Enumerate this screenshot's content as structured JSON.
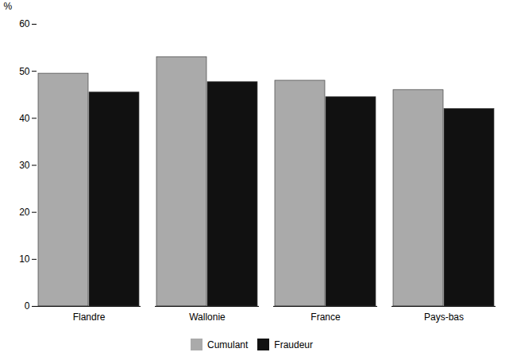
{
  "chart_data": {
    "type": "bar",
    "categories": [
      "Flandre",
      "Wallonie",
      "France",
      "Pays-bas"
    ],
    "series": [
      {
        "name": "Cumulant",
        "color": "#aaaaaa",
        "values": [
          49.5,
          53.0,
          48.0,
          46.0
        ]
      },
      {
        "name": "Fraudeur",
        "color": "#111111",
        "values": [
          45.5,
          47.7,
          44.5,
          42.0
        ]
      }
    ],
    "ylabel": "%",
    "ylim": [
      0,
      60
    ],
    "yticks": [
      0,
      10,
      20,
      30,
      40,
      50,
      60
    ],
    "grid": false,
    "legend": "bottom"
  }
}
